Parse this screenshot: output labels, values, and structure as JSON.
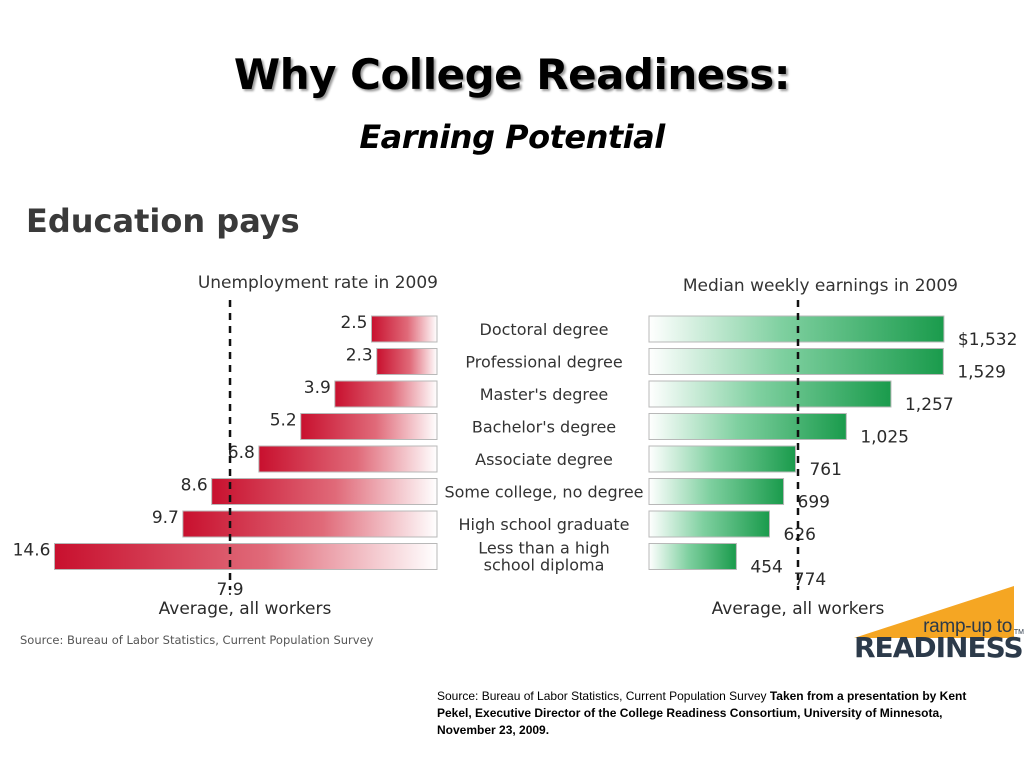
{
  "slide": {
    "title": "Why College Readiness:",
    "subtitle": "Earning Potential"
  },
  "chart_data": {
    "type": "bar",
    "title": "Education pays",
    "categories": [
      [
        "Doctoral degree"
      ],
      [
        "Professional degree"
      ],
      [
        "Master's degree"
      ],
      [
        "Bachelor's degree"
      ],
      [
        "Associate degree"
      ],
      [
        "Some college, no degree"
      ],
      [
        "High school graduate"
      ],
      [
        "Less than a high",
        "school diploma"
      ]
    ],
    "unemployment": {
      "title": "Unemployment rate in 2009",
      "values": [
        2.5,
        2.3,
        3.9,
        5.2,
        6.8,
        8.6,
        9.7,
        14.6
      ],
      "labels": [
        "2.5",
        "2.3",
        "3.9",
        "5.2",
        "6.8",
        "8.6",
        "9.7",
        "14.6"
      ],
      "average": 7.9,
      "average_value_label": "7.9",
      "average_label": "Average, all workers",
      "color": "#c8102e"
    },
    "earnings": {
      "title": "Median weekly earnings in 2009",
      "values": [
        1532,
        1529,
        1257,
        1025,
        761,
        699,
        626,
        454
      ],
      "labels": [
        "$1,532",
        "1,529",
        "1,257",
        "1,025",
        "761",
        "699",
        "626",
        "454"
      ],
      "average": 774,
      "average_value_label": "774",
      "average_label": "Average, all workers",
      "color": "#1a9b4c"
    },
    "source": "Source: Bureau of Labor Statistics, Current Population Survey"
  },
  "logo": {
    "line1": "ramp-up to",
    "line2": "READINESS",
    "tm": "TM",
    "color": "#f5a623"
  },
  "footnote": {
    "plain": "Source:  Bureau of Labor Statistics, Current Population Survey  ",
    "bold": "Taken from a presentation by Kent Pekel, Executive Director of the College Readiness Consortium, University of Minnesota, November 23, 2009."
  }
}
